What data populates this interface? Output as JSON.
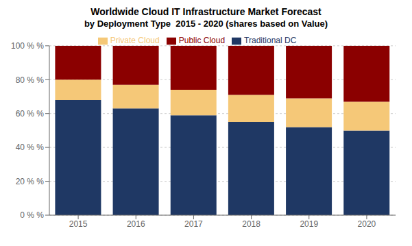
{
  "chart_data": {
    "type": "bar",
    "title": "Worldwide Cloud IT Infrastructure Market Forecast",
    "subtitle": "by Deployment Type  2015 - 2020 (shares based on Value)",
    "categories": [
      "2015",
      "2016",
      "2017",
      "2018",
      "2019",
      "2020"
    ],
    "series": [
      {
        "name": "Traditional DC",
        "color": "#1F3864",
        "values": [
          68,
          63,
          59,
          55,
          52,
          50
        ]
      },
      {
        "name": "Private Cloud",
        "color": "#F5C878",
        "values": [
          12,
          14,
          15,
          16,
          17,
          17
        ]
      },
      {
        "name": "Public Cloud",
        "color": "#8B0000",
        "values": [
          20,
          23,
          26,
          29,
          31,
          33
        ]
      }
    ],
    "stacked": true,
    "ylim": [
      0,
      100
    ],
    "yticks": [
      {
        "value": 0,
        "label": "0 % %"
      },
      {
        "value": 20,
        "label": "20 % %"
      },
      {
        "value": 40,
        "label": "40 % %"
      },
      {
        "value": 60,
        "label": "60 % %"
      },
      {
        "value": 80,
        "label": "80 % %"
      },
      {
        "value": 100,
        "label": "100 % %"
      }
    ],
    "grid": true,
    "legend": "top"
  }
}
